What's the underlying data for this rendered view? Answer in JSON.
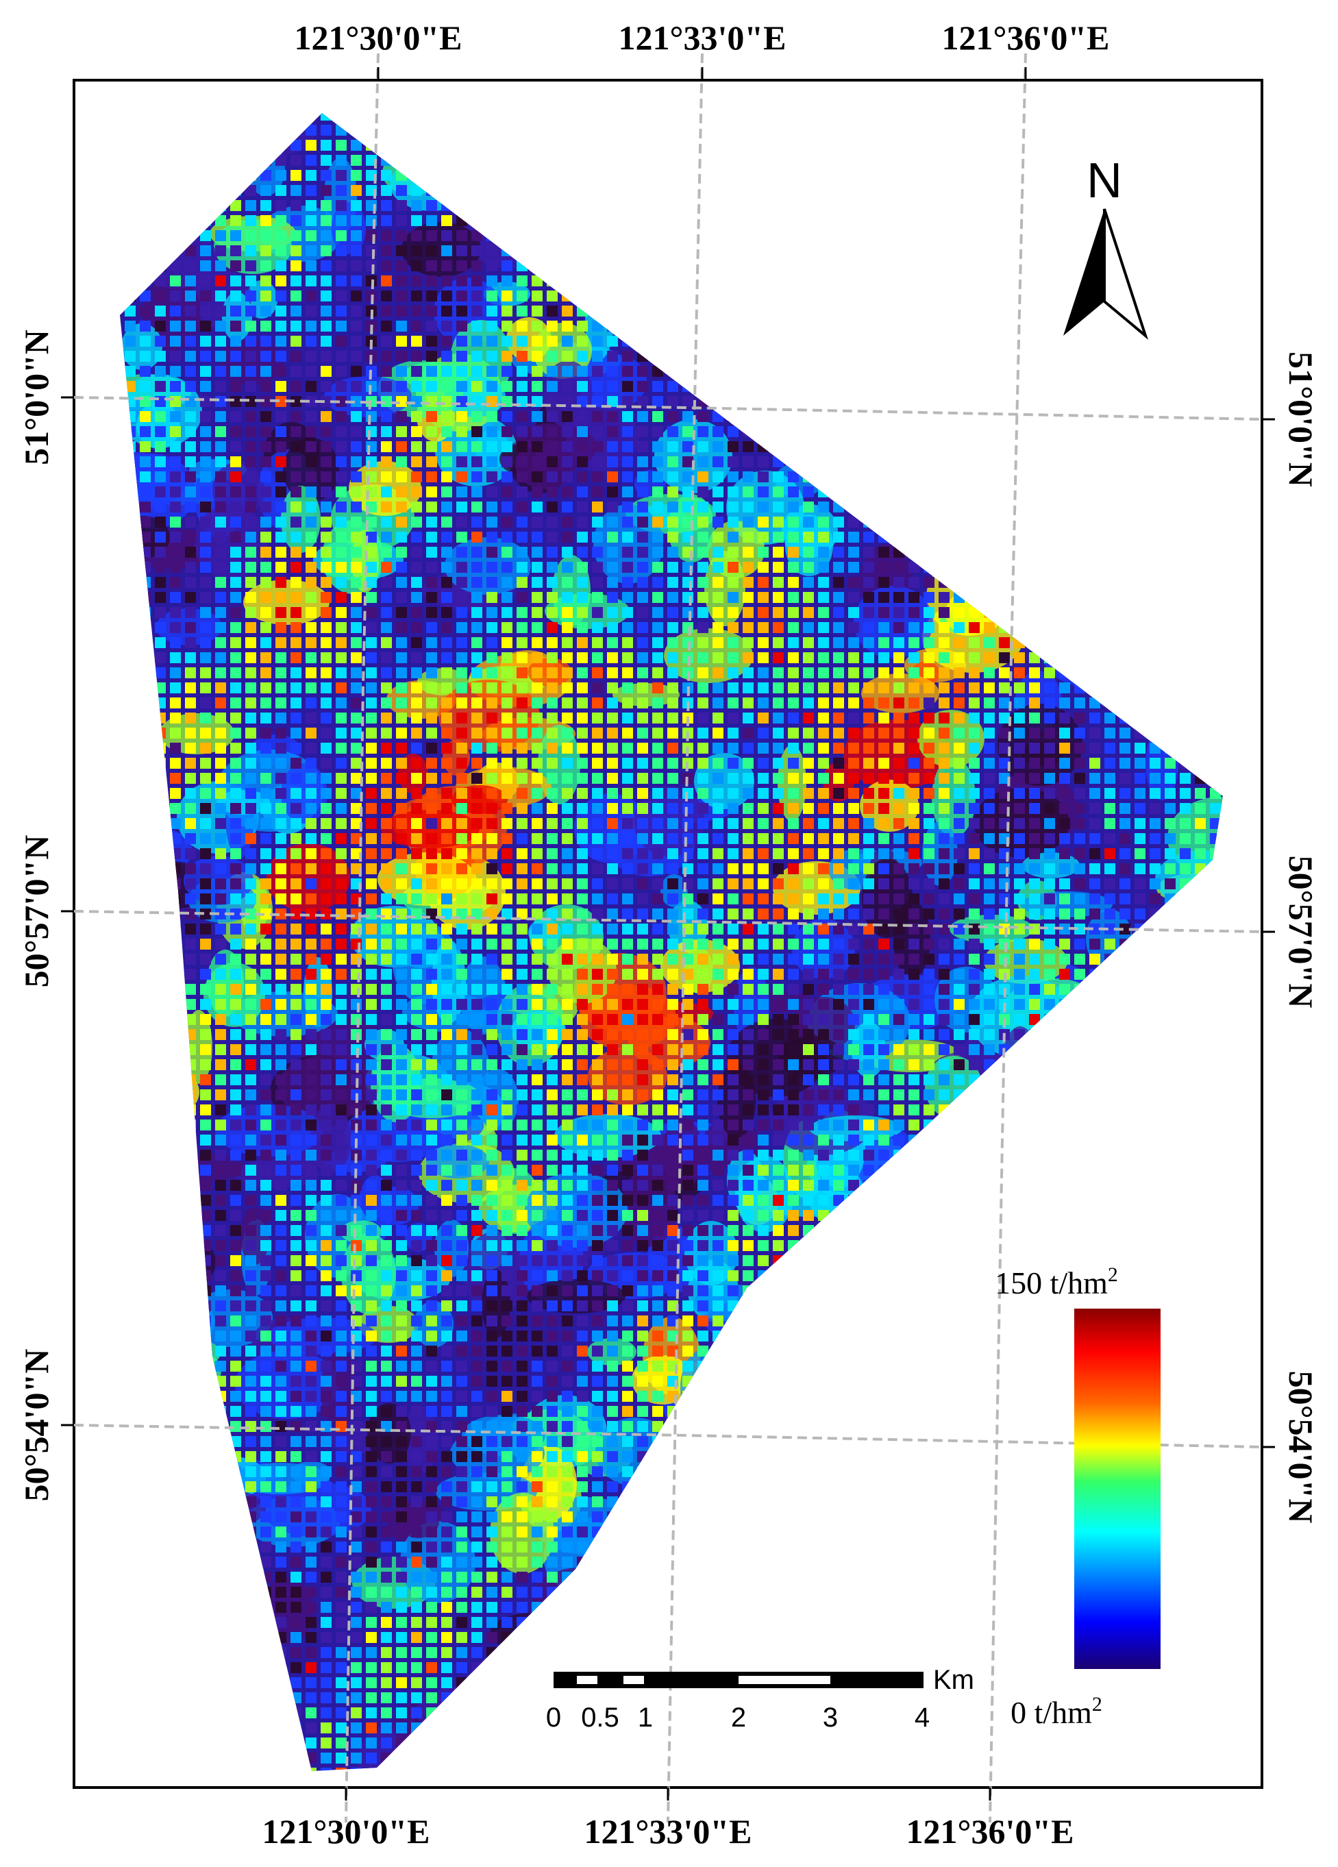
{
  "map": {
    "top_labels": [
      "121°30'0\"E",
      "121°33'0\"E",
      "121°36'0\"E"
    ],
    "bottom_labels": [
      "121°30'0\"E",
      "121°33'0\"E",
      "121°36'0\"E"
    ],
    "left_labels": [
      "51°0'0\"N",
      "50°57'0\"N",
      "50°54'0\"N"
    ],
    "right_labels": [
      "51°0'0\"N",
      "50°57'0\"N",
      "50°54'0\"N"
    ]
  },
  "north_arrow": {
    "letter": "N"
  },
  "legend": {
    "max_label": "150 t/hm",
    "max_sup": "2",
    "min_label": "0 t/hm",
    "min_sup": "2",
    "gradient_colors": [
      "#1a0070",
      "#0000ff",
      "#00ffff",
      "#33ff66",
      "#ffff00",
      "#ff6600",
      "#ff0000",
      "#8a0000"
    ]
  },
  "scale_bar": {
    "ticks": [
      "0",
      "0.5",
      "1",
      "2",
      "3",
      "4"
    ],
    "unit": "Km"
  },
  "colors": {
    "frame": "#000000",
    "graticule": "#b8b8b8",
    "biomass_palette": [
      "#2a0a30",
      "#45107a",
      "#3b1ca8",
      "#1e3cff",
      "#0096ff",
      "#00e0ff",
      "#2dff8c",
      "#9cff2a",
      "#ffff00",
      "#ffb400",
      "#ff4a00",
      "#e60000"
    ]
  }
}
